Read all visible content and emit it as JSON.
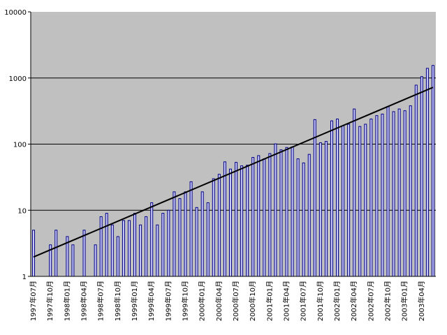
{
  "chart_data": {
    "type": "bar",
    "log_scale": true,
    "grid": true,
    "trendline": "exponential",
    "color": "#ccccff",
    "edge_color": "#000080",
    "plot_background": "#c0c0c0",
    "ylim": [
      1,
      10000
    ],
    "yticks": [
      1,
      10,
      100,
      1000,
      10000
    ],
    "categories": [
      "1997年07月",
      null,
      null,
      "1997年10月",
      null,
      null,
      "1998年01月",
      null,
      null,
      "1998年04月",
      null,
      null,
      "1998年07月",
      null,
      null,
      "1998年10月",
      null,
      null,
      "1999年01月",
      null,
      null,
      "1999年04月",
      null,
      null,
      "1999年07月",
      null,
      null,
      "1999年10月",
      null,
      null,
      "2000年01月",
      null,
      null,
      "2000年04月",
      null,
      null,
      "2000年07月",
      null,
      null,
      "2000年10月",
      null,
      null,
      "2001年01月",
      null,
      null,
      "2001年04月",
      null,
      null,
      "2001年07月",
      null,
      null,
      "2001年10月",
      null,
      null,
      "2002年01月",
      null,
      null,
      "2002年04月",
      null,
      null,
      "2002年07月",
      null,
      null,
      "2002年10月",
      null,
      null,
      "2003年01月",
      null,
      null,
      "2003年04月",
      null,
      null
    ],
    "values": [
      5,
      null,
      null,
      3,
      5,
      null,
      4,
      3,
      null,
      5,
      null,
      3,
      8,
      9,
      6,
      4,
      7,
      7,
      9,
      6,
      8,
      13,
      6,
      9,
      10,
      19,
      15,
      19,
      27,
      11,
      19,
      13,
      30,
      35,
      54,
      42,
      53,
      47,
      48,
      63,
      67,
      60,
      72,
      101,
      82,
      89,
      91,
      60,
      52,
      70,
      235,
      105,
      110,
      225,
      240,
      190,
      200,
      340,
      185,
      200,
      240,
      270,
      285,
      370,
      310,
      340,
      320,
      380,
      780,
      1050,
      1400,
      1550
    ]
  }
}
